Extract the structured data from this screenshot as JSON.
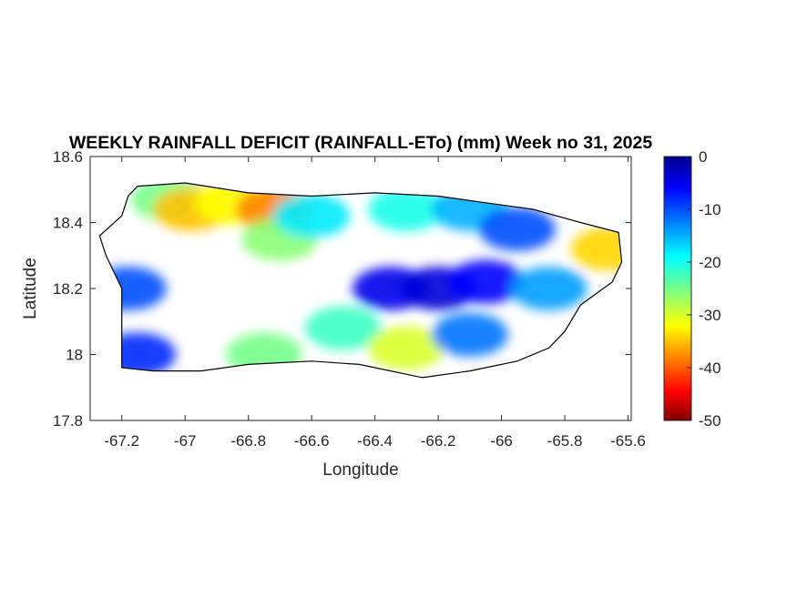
{
  "chart_data": {
    "type": "heatmap",
    "title": "WEEKLY RAINFALL DEFICIT (RAINFALL-ETo) (mm) Week no 31, 2025",
    "xlabel": "Longitude",
    "ylabel": "Latitude",
    "xlim": [
      -67.3,
      -65.59
    ],
    "ylim": [
      17.8,
      18.6
    ],
    "xticks": [
      -67.2,
      -67,
      -66.8,
      -66.6,
      -66.4,
      -66.2,
      -66,
      -65.8,
      -65.6
    ],
    "xtick_labels": [
      "-67.2",
      "-67",
      "-66.8",
      "-66.6",
      "-66.4",
      "-66.2",
      "-66",
      "-65.8",
      "-65.6"
    ],
    "yticks": [
      17.8,
      18,
      18.2,
      18.4,
      18.6
    ],
    "ytick_labels": [
      "17.8",
      "18",
      "18.2",
      "18.4",
      "18.6"
    ],
    "colorbar": {
      "range": [
        -50,
        0
      ],
      "ticks": [
        0,
        -10,
        -20,
        -30,
        -40,
        -50
      ],
      "tick_labels": [
        "0",
        "-10",
        "-20",
        "-30",
        "-40",
        "-50"
      ],
      "colormap": "jet"
    },
    "island_outline": [
      [
        -67.15,
        18.51
      ],
      [
        -67.0,
        18.52
      ],
      [
        -66.8,
        18.49
      ],
      [
        -66.6,
        18.48
      ],
      [
        -66.4,
        18.49
      ],
      [
        -66.2,
        18.48
      ],
      [
        -66.05,
        18.46
      ],
      [
        -65.9,
        18.44
      ],
      [
        -65.75,
        18.4
      ],
      [
        -65.63,
        18.37
      ],
      [
        -65.62,
        18.28
      ],
      [
        -65.65,
        18.22
      ],
      [
        -65.75,
        18.15
      ],
      [
        -65.8,
        18.07
      ],
      [
        -65.85,
        18.02
      ],
      [
        -65.95,
        17.98
      ],
      [
        -66.1,
        17.95
      ],
      [
        -66.25,
        17.93
      ],
      [
        -66.45,
        17.97
      ],
      [
        -66.6,
        17.98
      ],
      [
        -66.8,
        17.97
      ],
      [
        -66.95,
        17.95
      ],
      [
        -67.1,
        17.95
      ],
      [
        -67.2,
        17.96
      ],
      [
        -67.2,
        18.08
      ],
      [
        -67.2,
        18.2
      ],
      [
        -67.25,
        18.3
      ],
      [
        -67.27,
        18.36
      ],
      [
        -67.2,
        18.42
      ],
      [
        -67.18,
        18.48
      ]
    ],
    "deficit_regions": [
      {
        "lon": -67.05,
        "lat": 18.47,
        "value": -25
      },
      {
        "lon": -66.98,
        "lat": 18.44,
        "value": -35
      },
      {
        "lon": -66.85,
        "lat": 18.46,
        "value": -32
      },
      {
        "lon": -66.72,
        "lat": 18.44,
        "value": -38
      },
      {
        "lon": -66.7,
        "lat": 18.35,
        "value": -26
      },
      {
        "lon": -66.6,
        "lat": 18.42,
        "value": -18
      },
      {
        "lon": -66.3,
        "lat": 18.44,
        "value": -20
      },
      {
        "lon": -66.1,
        "lat": 18.44,
        "value": -15
      },
      {
        "lon": -65.95,
        "lat": 18.38,
        "value": -10
      },
      {
        "lon": -65.66,
        "lat": 18.32,
        "value": -34
      },
      {
        "lon": -66.35,
        "lat": 18.2,
        "value": -5
      },
      {
        "lon": -66.2,
        "lat": 18.2,
        "value": -4
      },
      {
        "lon": -66.05,
        "lat": 18.22,
        "value": -6
      },
      {
        "lon": -66.5,
        "lat": 18.08,
        "value": -22
      },
      {
        "lon": -66.3,
        "lat": 18.02,
        "value": -30
      },
      {
        "lon": -66.1,
        "lat": 18.06,
        "value": -12
      },
      {
        "lon": -66.75,
        "lat": 18.0,
        "value": -25
      },
      {
        "lon": -67.15,
        "lat": 18.0,
        "value": -8
      },
      {
        "lon": -67.18,
        "lat": 18.2,
        "value": -10
      },
      {
        "lon": -65.85,
        "lat": 18.2,
        "value": -14
      }
    ]
  }
}
